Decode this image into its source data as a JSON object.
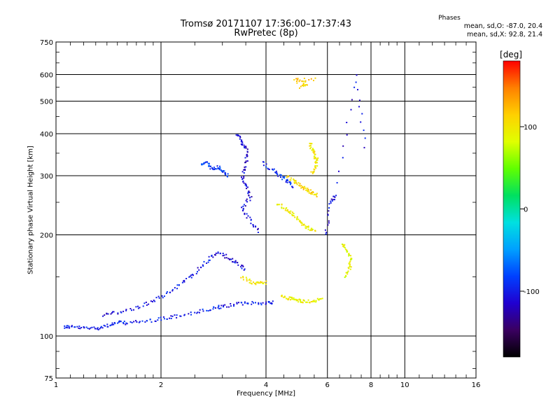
{
  "title": "Tromsø 20171107 17:36:00–17:37:43",
  "subtitle": "RwPretec (8p)",
  "phases": {
    "title": "Phases",
    "o_stats": "mean, sd,O: -87.0, 20.4",
    "x_stats": "mean, sd,X:  92.8, 21.4"
  },
  "chart_data": {
    "type": "scatter",
    "title": "Tromsø 20171107 17:36:00–17:37:43",
    "subtitle": "RwPretec (8p)",
    "xlabel": "Frequency [MHz]",
    "ylabel": "Stationary phase Virtual Height [km]",
    "xscale": "log",
    "yscale": "log",
    "xlim": [
      1,
      16
    ],
    "ylim": [
      75,
      750
    ],
    "x_ticks": [
      1,
      2,
      4,
      6,
      8,
      10,
      16
    ],
    "x_tick_labels": [
      "1",
      "2",
      "4",
      "6",
      "8",
      "10",
      "16"
    ],
    "y_ticks": [
      75,
      100,
      200,
      300,
      400,
      500,
      600,
      750
    ],
    "y_tick_labels": [
      "75",
      "100",
      "200",
      "300",
      "400",
      "500",
      "600",
      "750"
    ],
    "grid": true,
    "colorbar": {
      "label": "[deg]",
      "range": [
        -180,
        180
      ],
      "ticks": [
        -100,
        0,
        100
      ],
      "tick_labels": [
        "-100",
        "0",
        "100"
      ],
      "colors": [
        "#000000",
        "#3a0060",
        "#2000d0",
        "#0040ff",
        "#00a0ff",
        "#00e0e0",
        "#00e060",
        "#60ff00",
        "#e0ff00",
        "#ffd000",
        "#ff8000",
        "#ff0000"
      ]
    },
    "traces": [
      {
        "description_phase": -100,
        "points": [
          [
            1.05,
            107
          ],
          [
            1.1,
            107
          ],
          [
            1.2,
            106
          ],
          [
            1.3,
            106
          ],
          [
            1.4,
            108
          ],
          [
            1.5,
            110
          ],
          [
            1.6,
            110
          ],
          [
            1.8,
            111
          ],
          [
            2.0,
            113
          ],
          [
            2.2,
            115
          ],
          [
            2.5,
            118
          ],
          [
            2.8,
            121
          ],
          [
            3.0,
            123
          ],
          [
            3.3,
            125
          ],
          [
            3.6,
            126
          ],
          [
            4.0,
            126
          ],
          [
            4.2,
            127
          ]
        ]
      },
      {
        "description_phase": -105,
        "points": [
          [
            1.35,
            116
          ],
          [
            1.5,
            118
          ],
          [
            1.7,
            122
          ],
          [
            1.9,
            128
          ],
          [
            2.1,
            136
          ],
          [
            2.3,
            145
          ],
          [
            2.5,
            155
          ],
          [
            2.7,
            168
          ],
          [
            2.9,
            178
          ],
          [
            3.1,
            172
          ],
          [
            3.3,
            165
          ],
          [
            3.5,
            158
          ]
        ]
      },
      {
        "description_phase": -85,
        "points": [
          [
            2.6,
            325
          ],
          [
            2.7,
            330
          ],
          [
            2.8,
            315
          ],
          [
            2.9,
            320
          ],
          [
            3.0,
            310
          ],
          [
            3.1,
            300
          ]
        ]
      },
      {
        "description_phase": -110,
        "points": [
          [
            3.3,
            400
          ],
          [
            3.4,
            380
          ],
          [
            3.5,
            360
          ],
          [
            3.5,
            330
          ],
          [
            3.4,
            300
          ],
          [
            3.5,
            280
          ],
          [
            3.6,
            260
          ],
          [
            3.4,
            240
          ],
          [
            3.6,
            220
          ],
          [
            3.8,
            205
          ]
        ]
      },
      {
        "description_phase": -90,
        "points": [
          [
            3.9,
            330
          ],
          [
            4.2,
            310
          ],
          [
            4.4,
            300
          ],
          [
            4.6,
            290
          ],
          [
            4.8,
            280
          ]
        ]
      },
      {
        "description_phase": 95,
        "points": [
          [
            4.3,
            250
          ],
          [
            4.5,
            240
          ],
          [
            4.7,
            235
          ],
          [
            4.9,
            225
          ],
          [
            5.1,
            215
          ],
          [
            5.3,
            210
          ],
          [
            5.5,
            205
          ]
        ]
      },
      {
        "description_phase": 110,
        "points": [
          [
            4.6,
            300
          ],
          [
            4.8,
            290
          ],
          [
            5.0,
            280
          ],
          [
            5.2,
            275
          ],
          [
            5.4,
            268
          ],
          [
            5.6,
            262
          ]
        ]
      },
      {
        "description_phase": 100,
        "points": [
          [
            5.3,
            380
          ],
          [
            5.4,
            360
          ],
          [
            5.5,
            345
          ],
          [
            5.6,
            335
          ],
          [
            5.5,
            320
          ],
          [
            5.4,
            305
          ]
        ]
      },
      {
        "description_phase": 95,
        "points": [
          [
            4.4,
            132
          ],
          [
            4.6,
            130
          ],
          [
            4.8,
            129
          ],
          [
            5.0,
            128
          ],
          [
            5.2,
            127
          ],
          [
            5.5,
            128
          ],
          [
            5.8,
            129
          ]
        ]
      },
      {
        "description_phase": 100,
        "points": [
          [
            3.4,
            150
          ],
          [
            3.6,
            146
          ],
          [
            3.8,
            144
          ],
          [
            4.0,
            145
          ]
        ]
      },
      {
        "description_phase": 85,
        "points": [
          [
            6.6,
            190
          ],
          [
            6.8,
            180
          ],
          [
            7.0,
            170
          ],
          [
            6.9,
            160
          ],
          [
            6.7,
            150
          ]
        ]
      },
      {
        "description_phase": 115,
        "points": [
          [
            5.0,
            555
          ],
          [
            5.2,
            565
          ],
          [
            4.8,
            580
          ],
          [
            5.6,
            585
          ]
        ]
      },
      {
        "description_phase": -110,
        "points": [
          [
            5.9,
            200
          ],
          [
            6.1,
            250
          ],
          [
            6.3,
            265
          ],
          [
            7.2,
            600
          ],
          [
            7.7,
            350
          ]
        ]
      }
    ]
  }
}
